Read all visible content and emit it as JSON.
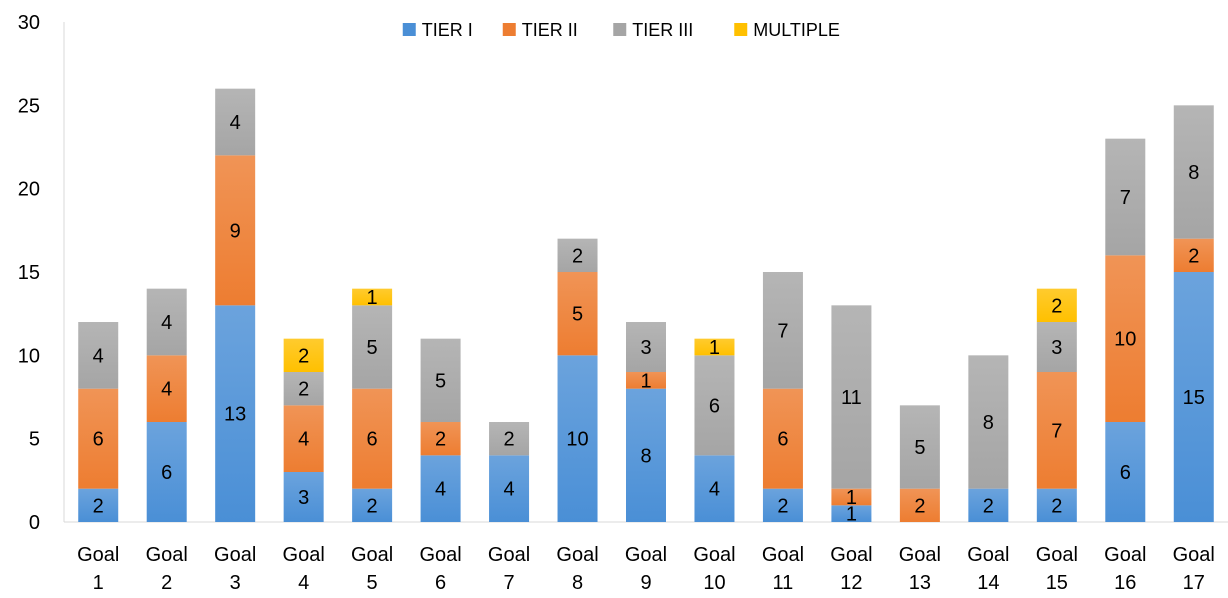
{
  "chart_data": {
    "type": "bar",
    "stacked": true,
    "categories": [
      "Goal 1",
      "Goal 2",
      "Goal 3",
      "Goal 4",
      "Goal 5",
      "Goal 6",
      "Goal 7",
      "Goal 8",
      "Goal 9",
      "Goal 10",
      "Goal 11",
      "Goal 12",
      "Goal 13",
      "Goal 14",
      "Goal 15",
      "Goal 16",
      "Goal 17"
    ],
    "series": [
      {
        "name": "TIER I",
        "color": "#4a8fd6",
        "values": [
          2,
          6,
          13,
          3,
          2,
          4,
          4,
          10,
          8,
          4,
          2,
          1,
          0,
          2,
          2,
          6,
          15
        ]
      },
      {
        "name": "TIER II",
        "color": "#ed7d31",
        "values": [
          6,
          4,
          9,
          4,
          6,
          2,
          0,
          5,
          1,
          0,
          6,
          1,
          2,
          0,
          7,
          10,
          2
        ]
      },
      {
        "name": "TIER III",
        "color": "#a5a5a5",
        "values": [
          4,
          4,
          4,
          2,
          5,
          5,
          2,
          2,
          3,
          6,
          7,
          11,
          5,
          8,
          3,
          7,
          8
        ]
      },
      {
        "name": "MULTIPLE",
        "color": "#ffc000",
        "values": [
          0,
          0,
          0,
          2,
          1,
          0,
          0,
          0,
          0,
          1,
          0,
          0,
          0,
          0,
          2,
          0,
          0
        ]
      }
    ],
    "ylim": [
      0,
      30
    ],
    "yticks": [
      "0",
      "5",
      "10",
      "15",
      "20",
      "25",
      "30"
    ],
    "legend_position": "top-center",
    "grid": false
  }
}
